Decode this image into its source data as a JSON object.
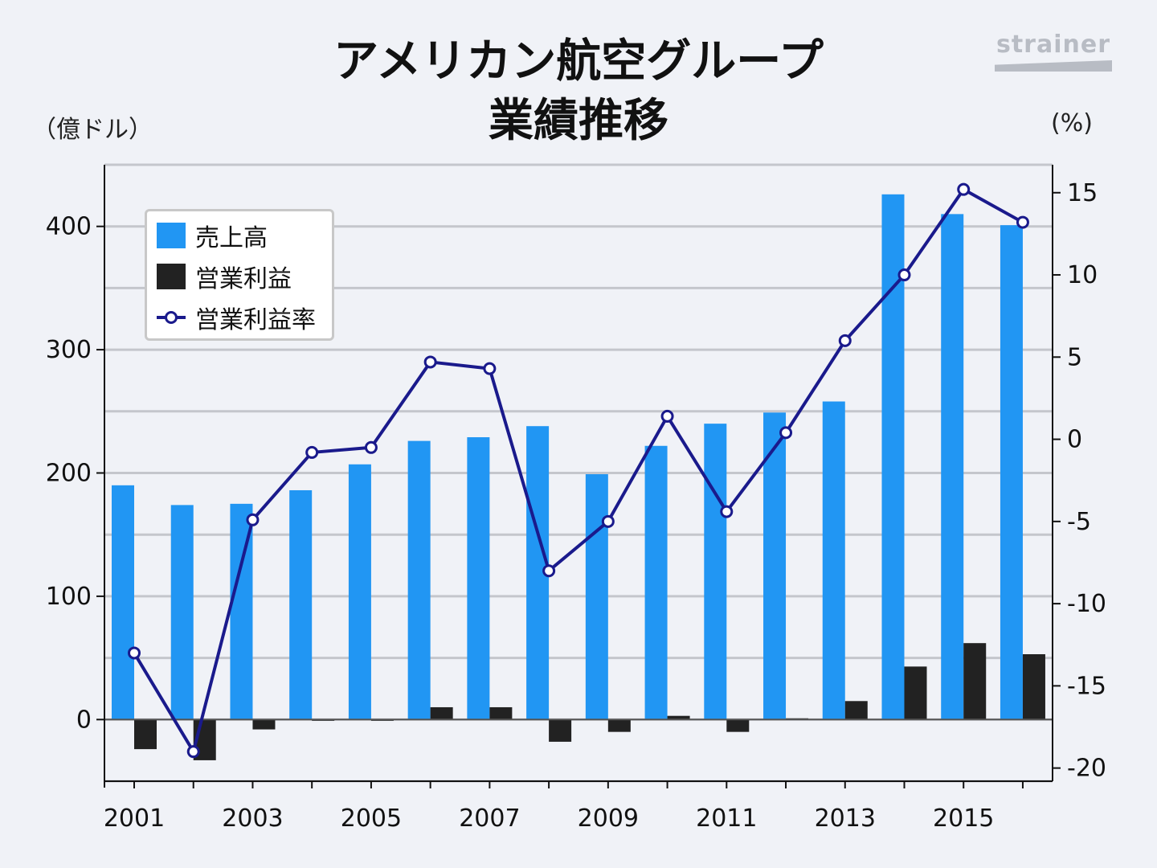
{
  "title": {
    "line1": "アメリカン航空グループ",
    "line2": "業績推移"
  },
  "brand": "strainer",
  "colors": {
    "revenue": "#2196f3",
    "operating_profit": "#222222",
    "margin_line": "#1a1a8c",
    "grid": "#c4c6cc",
    "background": "#f0f2f7"
  },
  "chart_data": {
    "type": "bar",
    "left_axis_unit": "（億ドル）",
    "right_axis_unit": "(%)",
    "x": [
      2001,
      2002,
      2003,
      2004,
      2005,
      2006,
      2007,
      2008,
      2009,
      2010,
      2011,
      2012,
      2013,
      2014,
      2015,
      2016
    ],
    "x_tick_labels": [
      "2001",
      "2003",
      "2005",
      "2007",
      "2009",
      "2011",
      "2013",
      "2015"
    ],
    "ylim_left": [
      -50,
      450
    ],
    "left_ticks": [
      "0",
      "100",
      "200",
      "300",
      "400"
    ],
    "ylim_right": [
      -20.8,
      16.7
    ],
    "right_ticks": [
      "-20",
      "-15",
      "-10",
      "-5",
      "0",
      "5",
      "10",
      "15"
    ],
    "grid": true,
    "legend_position": "top-left",
    "series": [
      {
        "name": "売上高",
        "kind": "bar",
        "axis": "left",
        "values": [
          190,
          174,
          175,
          186,
          207,
          226,
          229,
          238,
          199,
          222,
          240,
          249,
          258,
          426,
          410,
          401
        ]
      },
      {
        "name": "営業利益",
        "kind": "bar",
        "axis": "left",
        "values": [
          -24,
          -33,
          -8,
          -1,
          -1,
          10,
          10,
          -18,
          -10,
          3,
          -10,
          1,
          15,
          43,
          62,
          53
        ]
      },
      {
        "name": "営業利益率",
        "kind": "line",
        "axis": "right",
        "values": [
          -13,
          -19,
          -4.9,
          -0.8,
          -0.5,
          4.7,
          4.3,
          -8,
          -5,
          1.4,
          -4.4,
          0.4,
          6,
          10,
          15.2,
          13.2
        ]
      }
    ]
  }
}
